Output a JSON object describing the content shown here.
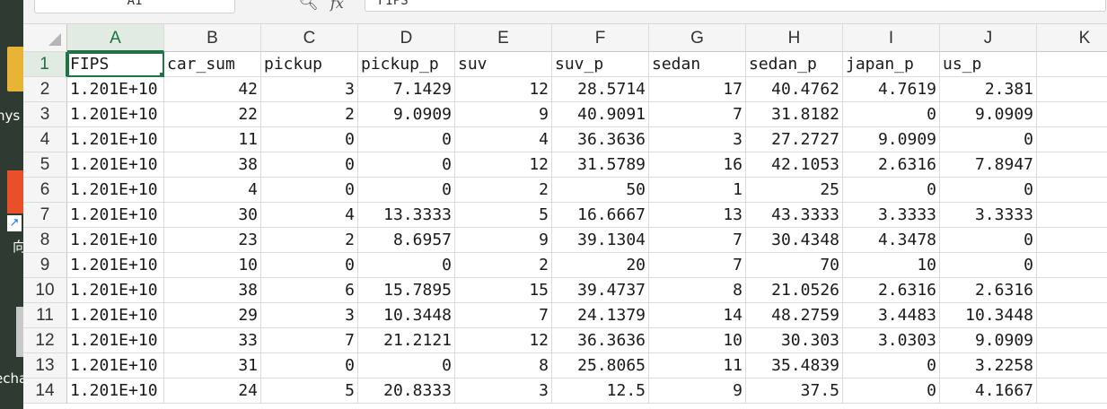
{
  "desktop": {
    "labels": [
      {
        "text": "nys",
        "top": 120,
        "left": -4
      },
      {
        "text": "向",
        "top": 264,
        "left": 14
      },
      {
        "text": "echa",
        "top": 413,
        "left": -6
      }
    ]
  },
  "formula_bar": {
    "name_box": "A1",
    "fx_label": "fx",
    "value": "FIPS"
  },
  "active_cell": "A1",
  "columns": [
    {
      "letter": "A",
      "width": 108
    },
    {
      "letter": "B",
      "width": 108
    },
    {
      "letter": "C",
      "width": 108
    },
    {
      "letter": "D",
      "width": 108
    },
    {
      "letter": "E",
      "width": 108
    },
    {
      "letter": "F",
      "width": 108
    },
    {
      "letter": "G",
      "width": 108
    },
    {
      "letter": "H",
      "width": 108
    },
    {
      "letter": "I",
      "width": 108
    },
    {
      "letter": "J",
      "width": 108
    },
    {
      "letter": "K",
      "width": 107
    }
  ],
  "rows": [
    [
      "FIPS",
      "car_sum",
      "pickup",
      "pickup_p",
      "suv",
      "suv_p",
      "sedan",
      "sedan_p",
      "japan_p",
      "us_p",
      ""
    ],
    [
      "1.201E+10",
      "42",
      "3",
      "7.1429",
      "12",
      "28.5714",
      "17",
      "40.4762",
      "4.7619",
      "2.381",
      ""
    ],
    [
      "1.201E+10",
      "22",
      "2",
      "9.0909",
      "9",
      "40.9091",
      "7",
      "31.8182",
      "0",
      "9.0909",
      ""
    ],
    [
      "1.201E+10",
      "11",
      "0",
      "0",
      "4",
      "36.3636",
      "3",
      "27.2727",
      "9.0909",
      "0",
      ""
    ],
    [
      "1.201E+10",
      "38",
      "0",
      "0",
      "12",
      "31.5789",
      "16",
      "42.1053",
      "2.6316",
      "7.8947",
      ""
    ],
    [
      "1.201E+10",
      "4",
      "0",
      "0",
      "2",
      "50",
      "1",
      "25",
      "0",
      "0",
      ""
    ],
    [
      "1.201E+10",
      "30",
      "4",
      "13.3333",
      "5",
      "16.6667",
      "13",
      "43.3333",
      "3.3333",
      "3.3333",
      ""
    ],
    [
      "1.201E+10",
      "23",
      "2",
      "8.6957",
      "9",
      "39.1304",
      "7",
      "30.4348",
      "4.3478",
      "0",
      ""
    ],
    [
      "1.201E+10",
      "10",
      "0",
      "0",
      "2",
      "20",
      "7",
      "70",
      "10",
      "0",
      ""
    ],
    [
      "1.201E+10",
      "38",
      "6",
      "15.7895",
      "15",
      "39.4737",
      "8",
      "21.0526",
      "2.6316",
      "2.6316",
      ""
    ],
    [
      "1.201E+10",
      "29",
      "3",
      "10.3448",
      "7",
      "24.1379",
      "14",
      "48.2759",
      "3.4483",
      "10.3448",
      ""
    ],
    [
      "1.201E+10",
      "33",
      "7",
      "21.2121",
      "12",
      "36.3636",
      "10",
      "30.303",
      "3.0303",
      "9.0909",
      ""
    ],
    [
      "1.201E+10",
      "31",
      "0",
      "0",
      "8",
      "25.8065",
      "11",
      "35.4839",
      "0",
      "3.2258",
      ""
    ],
    [
      "1.201E+10",
      "24",
      "5",
      "20.8333",
      "3",
      "12.5",
      "9",
      "37.5",
      "0",
      "4.1667",
      ""
    ]
  ]
}
